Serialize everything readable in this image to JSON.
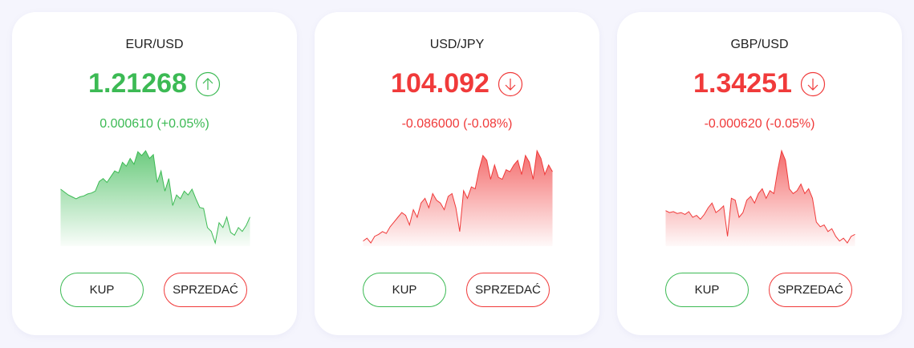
{
  "cards": [
    {
      "title": "EUR/USD",
      "price": "1.21268",
      "change": "0.000610 (+0.05%)",
      "direction": "up",
      "color": "#3cba54",
      "buy": "KUP",
      "sell": "SPRZEDAĆ",
      "spark": [
        58,
        55,
        52,
        50,
        48,
        50,
        51,
        53,
        54,
        56,
        66,
        69,
        65,
        71,
        77,
        75,
        86,
        82,
        90,
        84,
        97,
        93,
        98,
        90,
        94,
        65,
        77,
        56,
        69,
        41,
        52,
        48,
        56,
        52,
        58,
        48,
        39,
        38,
        18,
        14,
        2,
        23,
        18,
        29,
        13,
        10,
        18,
        14,
        20,
        29
      ]
    },
    {
      "title": "USD/JPY",
      "price": "104.092",
      "change": "-0.086000 (-0.08%)",
      "direction": "down",
      "color": "#f03a3a",
      "buy": "KUP",
      "sell": "SPRZEDAĆ",
      "spark": [
        5,
        8,
        3,
        10,
        12,
        15,
        13,
        20,
        25,
        30,
        35,
        32,
        22,
        38,
        30,
        45,
        50,
        40,
        55,
        48,
        45,
        38,
        52,
        55,
        40,
        15,
        58,
        50,
        62,
        60,
        80,
        95,
        90,
        70,
        85,
        72,
        70,
        80,
        78,
        85,
        90,
        75,
        95,
        88,
        70,
        100,
        92,
        75,
        85,
        78
      ]
    },
    {
      "title": "GBP/USD",
      "price": "1.34251",
      "change": "-0.000620 (-0.05%)",
      "direction": "down",
      "color": "#f03a3a",
      "buy": "KUP",
      "sell": "SPRZEDAĆ",
      "spark": [
        37,
        35,
        36,
        34,
        35,
        33,
        36,
        30,
        32,
        28,
        33,
        40,
        45,
        35,
        38,
        42,
        10,
        50,
        48,
        30,
        35,
        48,
        52,
        45,
        55,
        60,
        50,
        58,
        55,
        80,
        100,
        90,
        60,
        55,
        58,
        65,
        55,
        60,
        50,
        25,
        20,
        22,
        15,
        18,
        10,
        5,
        8,
        3,
        10,
        12
      ]
    }
  ]
}
